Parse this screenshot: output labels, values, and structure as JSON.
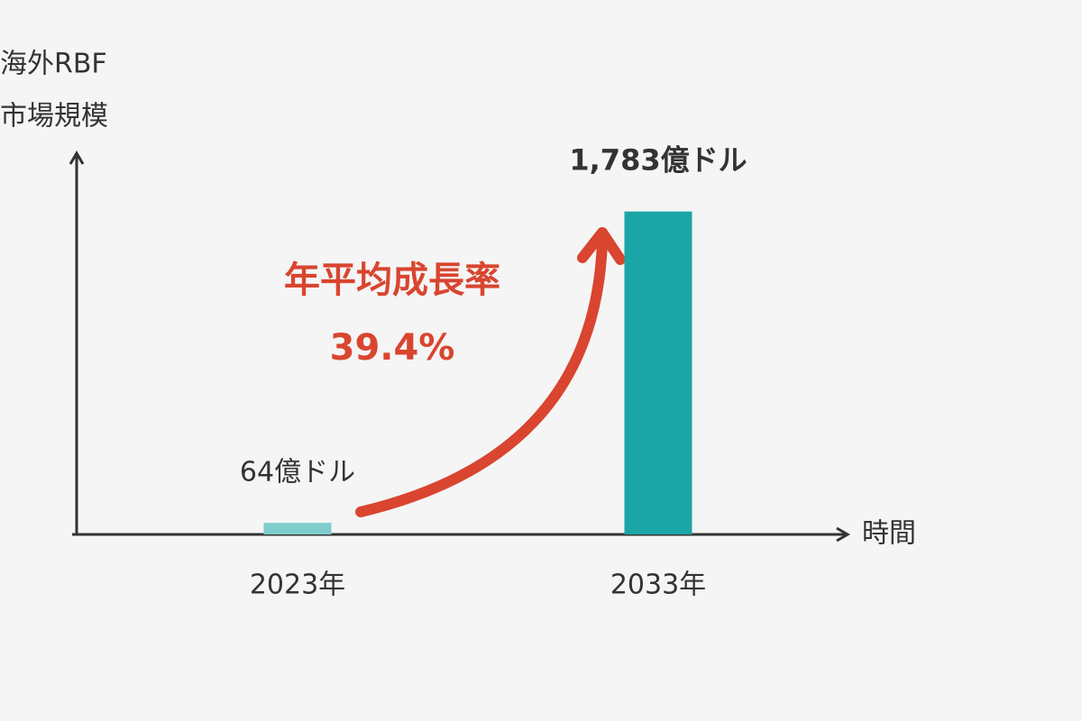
{
  "chart_data": {
    "type": "bar",
    "y_axis_label": [
      "海外RBF",
      "市場規模"
    ],
    "x_axis_label": "時間",
    "categories": [
      "2023年",
      "2033年"
    ],
    "values": [
      64,
      1783
    ],
    "value_labels": [
      "64億ドル",
      "1,783億ドル"
    ],
    "colors": [
      "#7fcdcd",
      "#1aa6a6"
    ],
    "annotations": [
      "年平均成長率",
      "39.4%"
    ],
    "ylim": [
      0,
      2100
    ]
  }
}
